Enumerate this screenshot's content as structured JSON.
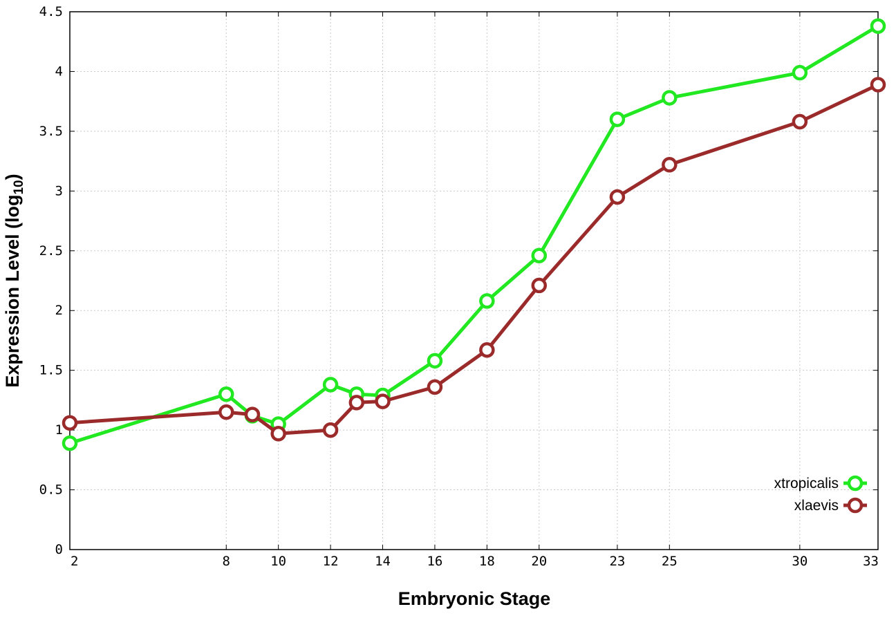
{
  "chart_data": {
    "type": "line",
    "xlabel": "Embryonic Stage",
    "ylabel": "Expression Level (log",
    "ylabel_sub": "10",
    "ylabel_close": ")",
    "xlim": [
      2,
      33
    ],
    "ylim": [
      0,
      4.5
    ],
    "x_ticks": [
      2,
      8,
      10,
      12,
      14,
      16,
      18,
      20,
      23,
      25,
      30,
      33
    ],
    "y_ticks": [
      0,
      0.5,
      1,
      1.5,
      2,
      2.5,
      3,
      3.5,
      4,
      4.5
    ],
    "y_tick_labels": [
      "0",
      "0.5",
      "1",
      "1.5",
      "2",
      "2.5",
      "3",
      "3.5",
      "4",
      "4.5"
    ],
    "grid": true,
    "legend_position": "bottom-right",
    "series": [
      {
        "name": "xtropicalis",
        "color": "#22e822",
        "points": [
          [
            2,
            0.89
          ],
          [
            8,
            1.3
          ],
          [
            9,
            1.12
          ],
          [
            10,
            1.05
          ],
          [
            12,
            1.38
          ],
          [
            13,
            1.3
          ],
          [
            14,
            1.29
          ],
          [
            16,
            1.58
          ],
          [
            18,
            2.08
          ],
          [
            20,
            2.46
          ],
          [
            23,
            3.6
          ],
          [
            25,
            3.78
          ],
          [
            30,
            3.99
          ],
          [
            33,
            4.38
          ]
        ]
      },
      {
        "name": "xlaevis",
        "color": "#9b2a2a",
        "points": [
          [
            2,
            1.06
          ],
          [
            8,
            1.15
          ],
          [
            9,
            1.13
          ],
          [
            10,
            0.97
          ],
          [
            12,
            1.0
          ],
          [
            13,
            1.23
          ],
          [
            14,
            1.24
          ],
          [
            16,
            1.36
          ],
          [
            18,
            1.67
          ],
          [
            20,
            2.21
          ],
          [
            23,
            2.95
          ],
          [
            25,
            3.22
          ],
          [
            30,
            3.58
          ],
          [
            33,
            3.89
          ]
        ]
      }
    ]
  }
}
